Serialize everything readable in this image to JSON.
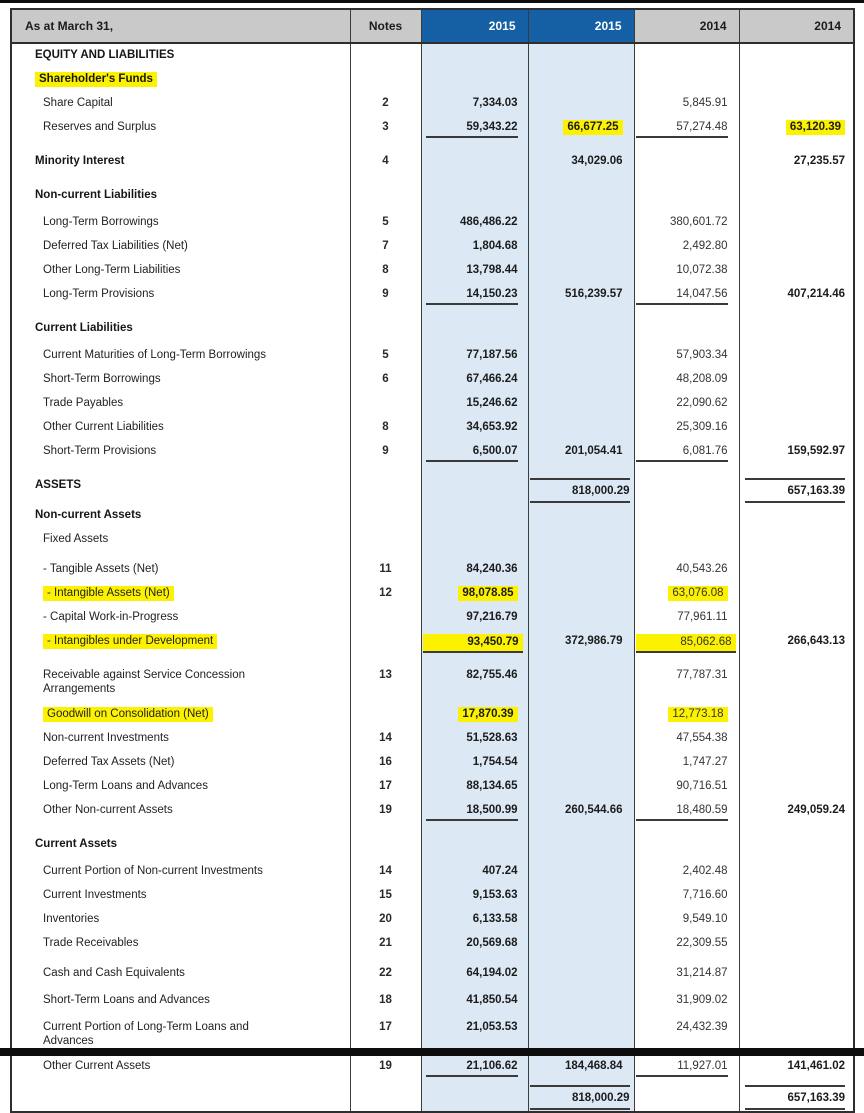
{
  "document": {
    "type": "consolidated balance sheet extract",
    "date_caption": "As at March 31,"
  },
  "colors": {
    "header_blue": "#1560A5",
    "column_light_blue": "#DCE8F4",
    "header_gray": "#C9C9C9",
    "highlight_yellow": "#FCF200"
  },
  "header": {
    "col_label": "As at March 31,",
    "col_notes": "Notes",
    "col_2015_detail": "2015",
    "col_2015_total": "2015",
    "col_2014_detail": "2014",
    "col_2014_total": "2014"
  },
  "rows": [
    {
      "label": "EQUITY AND LIABILITIES",
      "sec": true
    },
    {
      "label": "Shareholder's Funds",
      "sec": true,
      "hlL": true
    },
    {
      "label": "Share Capital",
      "note": "2",
      "v1": "7,334.03",
      "v3": "5,845.91"
    },
    {
      "label": "Reserves and Surplus",
      "note": "3",
      "v1": "59,343.22",
      "v2": "66,677.25",
      "v3": "57,274.48",
      "v4": "63,120.39",
      "ul": [
        1,
        3
      ],
      "hl": [
        2,
        4
      ]
    },
    {
      "label": "Minority Interest",
      "sec": true,
      "note": "4",
      "v2": "34,029.06",
      "v4": "27,235.57",
      "gap": 10
    },
    {
      "label": "Non-current Liabilities",
      "sec": true,
      "gap": 10
    },
    {
      "label": "Long-Term Borrowings",
      "note": "5",
      "v1": "486,486.22",
      "v3": "380,601.72",
      "gap": 3
    },
    {
      "label": "Deferred Tax Liabilities (Net)",
      "note": "7",
      "v1": "1,804.68",
      "v3": "2,492.80"
    },
    {
      "label": "Other Long-Term Liabilities",
      "note": "8",
      "v1": "13,798.44",
      "v3": "10,072.38"
    },
    {
      "label": "Long-Term Provisions",
      "note": "9",
      "v1": "14,150.23",
      "v2": "516,239.57",
      "v3": "14,047.56",
      "v4": "407,214.46",
      "ul": [
        1,
        3
      ]
    },
    {
      "label": "Current Liabilities",
      "sec": true,
      "gap": 10
    },
    {
      "label": "Current Maturities of Long-Term Borrowings",
      "note": "5",
      "v1": "77,187.56",
      "v3": "57,903.34",
      "gap": 3
    },
    {
      "label": "Short-Term Borrowings",
      "note": "6",
      "v1": "67,466.24",
      "v3": "48,208.09"
    },
    {
      "label": "Trade Payables",
      "v1": "15,246.62",
      "v3": "22,090.62"
    },
    {
      "label": "Other Current Liabilities",
      "note": "8",
      "v1": "34,653.92",
      "v3": "25,309.16"
    },
    {
      "label": "Short-Term Provisions",
      "note": "9",
      "v1": "6,500.07",
      "v2": "201,054.41",
      "v3": "6,081.76",
      "v4": "159,592.97",
      "ul": [
        1,
        3
      ]
    },
    {
      "label": "ASSETS",
      "sec": true,
      "v2": "818,000.29",
      "v4": "657,163.39",
      "tt": [
        2,
        4
      ],
      "gap": 10
    },
    {
      "label": "Non-current Assets",
      "sec": true
    },
    {
      "label": "Fixed Assets"
    },
    {
      "label": "- Tangible Assets (Net)",
      "note": "11",
      "v1": "84,240.36",
      "v3": "40,543.26",
      "gap": 6
    },
    {
      "label": "- Intangible Assets (Net)",
      "note": "12",
      "v1": "98,078.85",
      "v3": "63,076.08",
      "hlL": true,
      "hl": [
        1,
        3
      ]
    },
    {
      "label": "- Capital Work-in-Progress",
      "v1": "97,216.79",
      "v3": "77,961.11"
    },
    {
      "label": "- Intangibles under Development",
      "v1": "93,450.79",
      "v2": "372,986.79",
      "v3": "85,062.68",
      "v4": "266,643.13",
      "hlL": true,
      "hl": [
        1,
        3
      ],
      "ul": [
        1,
        3
      ]
    },
    {
      "label": "Receivable against Service Concession\nArrangements",
      "note": "13",
      "v1": "82,755.46",
      "v3": "77,787.31",
      "gap": 10,
      "two": true
    },
    {
      "label": "Goodwill on Consolidation (Net)",
      "v1": "17,870.39",
      "v3": "12,773.18",
      "hlL": true,
      "hl": [
        1,
        3
      ]
    },
    {
      "label": "Non-current Investments",
      "note": "14",
      "v1": "51,528.63",
      "v3": "47,554.38"
    },
    {
      "label": "Deferred Tax Assets (Net)",
      "note": "16",
      "v1": "1,754.54",
      "v3": "1,747.27"
    },
    {
      "label": "Long-Term Loans and Advances",
      "note": "17",
      "v1": "88,134.65",
      "v3": "90,716.51"
    },
    {
      "label": "Other Non-current Assets",
      "note": "19",
      "v1": "18,500.99",
      "v2": "260,544.66",
      "v3": "18,480.59",
      "v4": "249,059.24",
      "ul": [
        1,
        3
      ]
    },
    {
      "label": "Current Assets",
      "sec": true,
      "gap": 10
    },
    {
      "label": "Current Portion of Non-current Investments",
      "note": "14",
      "v1": "407.24",
      "v3": "2,402.48",
      "gap": 3
    },
    {
      "label": "Current Investments",
      "note": "15",
      "v1": "9,153.63",
      "v3": "7,716.60"
    },
    {
      "label": "Inventories",
      "note": "20",
      "v1": "6,133.58",
      "v3": "9,549.10"
    },
    {
      "label": "Trade Receivables",
      "note": "21",
      "v1": "20,569.68",
      "v3": "22,309.55"
    },
    {
      "label": "Cash and Cash Equivalents",
      "note": "22",
      "v1": "64,194.02",
      "v3": "31,214.87",
      "gap": 6
    },
    {
      "label": "Short-Term Loans and Advances",
      "note": "18",
      "v1": "41,850.54",
      "v3": "31,909.02",
      "gap": 3
    },
    {
      "label": "Current Portion of Long-Term Loans and\nAdvances",
      "note": "17",
      "v1": "21,053.53",
      "v3": "24,432.39",
      "gap": 3,
      "two": true
    },
    {
      "label": "Other Current Assets",
      "note": "19",
      "v1": "21,106.62",
      "v2": "184,468.84",
      "v3": "11,927.01",
      "v4": "141,461.02",
      "ul": [
        1,
        3
      ]
    },
    {
      "label": "",
      "v2": "818,000.29",
      "v4": "657,163.39",
      "tt": [
        2,
        4
      ],
      "gap": 2
    }
  ]
}
